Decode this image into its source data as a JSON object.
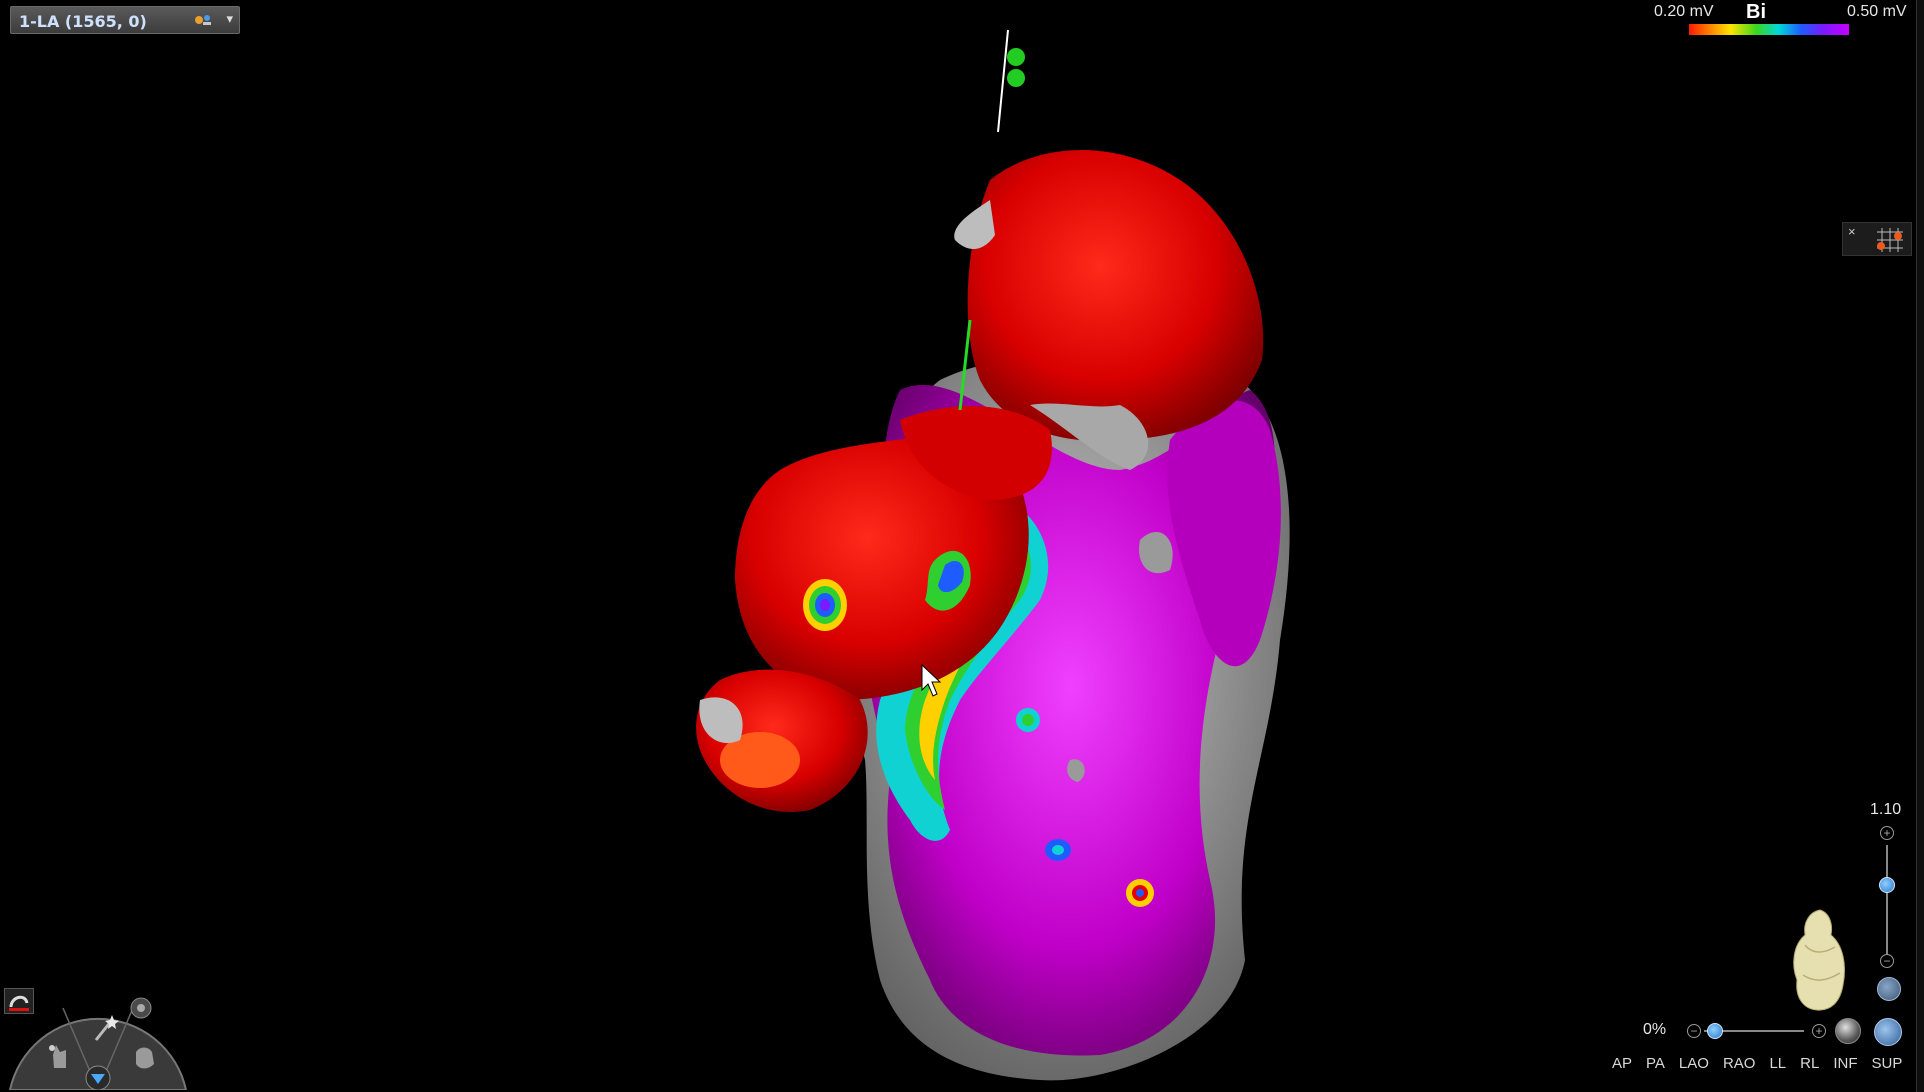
{
  "map_selector": {
    "label": "1-LA (1565, 0)"
  },
  "color_scale": {
    "min_label": "0.20 mV",
    "mode_label": "Bi",
    "max_label": "0.50 mV",
    "gradient_colors": [
      "#ff1a00",
      "#ff7a00",
      "#ffe400",
      "#3cd61e",
      "#00d8d8",
      "#1e5cff",
      "#7a1aff",
      "#c800ff"
    ]
  },
  "zoom": {
    "value_label": "1.10",
    "level": 0.65
  },
  "opacity": {
    "value_label": "0%",
    "level": 0.1
  },
  "view_buttons": [
    "AP",
    "PA",
    "LAO",
    "RAO",
    "LL",
    "RL",
    "INF",
    "SUP"
  ],
  "icons": {
    "map_selector": "catheter-icon",
    "grid_widget": "grid-points-icon",
    "heart": "heart-icon",
    "sphere": "sphere-icon",
    "rotate": "rotate-icon",
    "tool_dial": [
      "hand-pointer-icon",
      "magic-wand-icon",
      "grab-hand-icon",
      "filter-icon",
      "settings-icon"
    ]
  },
  "colors": {
    "scar_low_voltage": "#e60000",
    "healthy_voltage": "#c000c8",
    "unmapped": "#9a9a9a",
    "catheter": "#22cc22"
  }
}
